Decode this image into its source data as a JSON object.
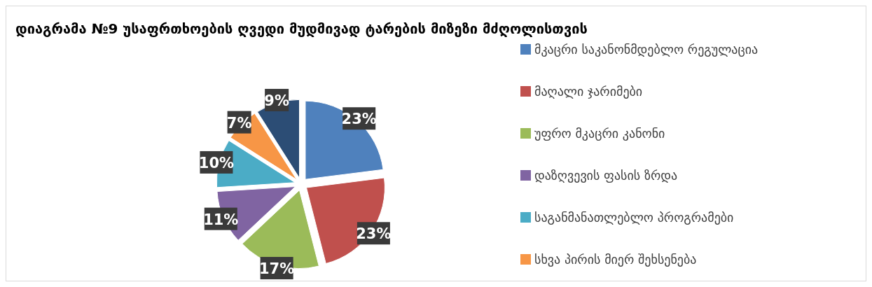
{
  "chart_data": {
    "type": "pie",
    "title": "დიაგრამა №9 უსაფრთხოების ღვედი მუდმივად ტარების მიზეზი  მძღოლისთვის",
    "categories": [
      "მკაცრი საკანონმდებლო რეგულაცია",
      "მაღალი ჯარიმები",
      "უფრო მკაცრი კანონი",
      "დაზღვევის ფასის ზრდა",
      "საგანმანათლებლო პროგრამები",
      "სხვა პირის მიერ შეხსენება",
      null
    ],
    "values": [
      23,
      23,
      17,
      11,
      10,
      7,
      9
    ],
    "value_labels": [
      "23%",
      "23%",
      "17%",
      "11%",
      "10%",
      "7%",
      "9%"
    ],
    "colors": [
      "#4f81bd",
      "#c0504d",
      "#9bbb59",
      "#8064a2",
      "#4bacc6",
      "#f79646",
      "#2c4d75"
    ],
    "legend": "right"
  }
}
